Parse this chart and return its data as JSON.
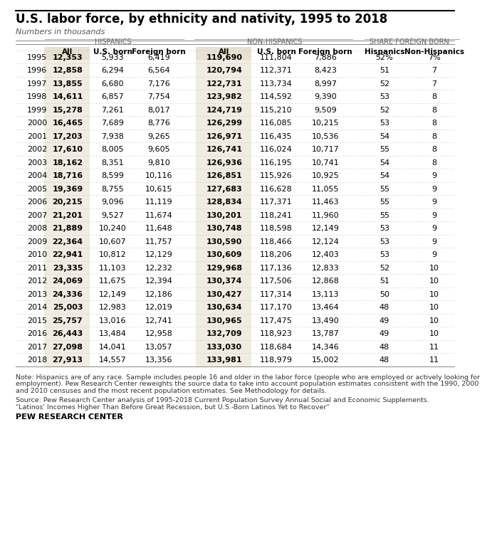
{
  "title": "U.S. labor force, by ethnicity and nativity, 1995 to 2018",
  "subtitle": "Numbers in thousands",
  "headers_group1": "HISPANICS",
  "headers_group2": "NON-HISPANICS",
  "headers_group3": "SHARE FOREIGN BORN",
  "col_headers": [
    "All",
    "U.S. born",
    "Foreign born",
    "All",
    "U.S. born",
    "Foreign born",
    "Hispanics",
    "Non-Hispanics"
  ],
  "years": [
    1995,
    1996,
    1997,
    1998,
    1999,
    2000,
    2001,
    2002,
    2003,
    2004,
    2005,
    2006,
    2007,
    2008,
    2009,
    2010,
    2011,
    2012,
    2013,
    2014,
    2015,
    2016,
    2017,
    2018
  ],
  "hisp_all": [
    12353,
    12858,
    13855,
    14611,
    15278,
    16465,
    17203,
    17610,
    18162,
    18716,
    19369,
    20215,
    21201,
    21889,
    22364,
    22941,
    23335,
    24069,
    24336,
    25003,
    25757,
    26443,
    27098,
    27913
  ],
  "hisp_us": [
    5933,
    6294,
    6680,
    6857,
    7261,
    7689,
    7938,
    8005,
    8351,
    8599,
    8755,
    9096,
    9527,
    10240,
    10607,
    10812,
    11103,
    11675,
    12149,
    12983,
    13016,
    13484,
    14041,
    14557
  ],
  "hisp_fb": [
    6419,
    6564,
    7176,
    7754,
    8017,
    8776,
    9265,
    9605,
    9810,
    10116,
    10615,
    11119,
    11674,
    11648,
    11757,
    12129,
    12232,
    12394,
    12186,
    12019,
    12741,
    12958,
    13057,
    13356
  ],
  "nonhisp_all": [
    119690,
    120794,
    122731,
    123982,
    124719,
    126299,
    126971,
    126741,
    126936,
    126851,
    127683,
    128834,
    130201,
    130748,
    130590,
    130609,
    129968,
    130374,
    130427,
    130634,
    130965,
    132709,
    133030,
    133981
  ],
  "nonhisp_us": [
    111804,
    112371,
    113734,
    114592,
    115210,
    116085,
    116435,
    116024,
    116195,
    115926,
    116628,
    117371,
    118241,
    118598,
    118466,
    118206,
    117136,
    117506,
    117314,
    117170,
    117475,
    118923,
    118684,
    118979
  ],
  "nonhisp_fb": [
    7886,
    8423,
    8997,
    9390,
    9509,
    10215,
    10536,
    10717,
    10741,
    10925,
    11055,
    11463,
    11960,
    12149,
    12124,
    12403,
    12833,
    12868,
    13113,
    13464,
    13490,
    13787,
    14346,
    15002
  ],
  "share_hisp": [
    "52%",
    "51",
    "52",
    "53",
    "52",
    "53",
    "54",
    "55",
    "54",
    "54",
    "55",
    "55",
    "55",
    "53",
    "53",
    "53",
    "52",
    "51",
    "50",
    "48",
    "49",
    "49",
    "48",
    "48"
  ],
  "share_nonhisp": [
    "7%",
    "7",
    "7",
    "8",
    "8",
    "8",
    "8",
    "8",
    "8",
    "9",
    "9",
    "9",
    "9",
    "9",
    "9",
    "9",
    "10",
    "10",
    "10",
    "10",
    "10",
    "10",
    "11",
    "11"
  ],
  "bg_color_all": "#e8e0d0",
  "note_text": "Note: Hispanics are of any race. Sample includes people 16 and older in the labor force (people who are employed or actively looking for employment). Pew Research Center reweights the source data to take into account population estimates consistent with the 1990, 2000 and 2010 censuses and the most recent population estimates. See Methodology for details.",
  "source_text": "Source: Pew Research Center analysis of 1995-2018 Current Population Survey Annual Social and Economic Supplements.",
  "source_text2": "\"Latinos' Incomes Higher Than Before Great Recession, but U.S.-Born Latinos Yet to Recover\"",
  "brand": "PEW RESEARCH CENTER",
  "title_fontsize": 12,
  "subtitle_fontsize": 8,
  "header_fontsize": 7.5,
  "data_fontsize": 8,
  "note_fontsize": 6.8,
  "brand_fontsize": 8
}
